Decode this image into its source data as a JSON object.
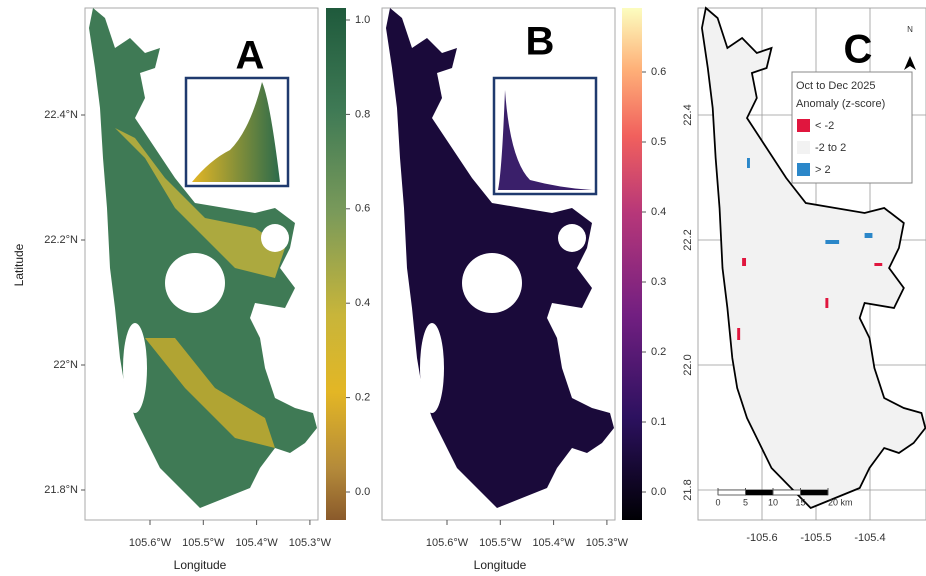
{
  "panels": {
    "a": {
      "label": "A",
      "y_axis_label": "Latitude",
      "x_axis_label": "Longitude",
      "lat_ticks": [
        {
          "value": 22.4,
          "label": "22.4°N"
        },
        {
          "value": 22.2,
          "label": "22.2°N"
        },
        {
          "value": 22,
          "label": "22°N"
        },
        {
          "value": 21.8,
          "label": "21.8°N"
        }
      ],
      "lon_ticks": [
        {
          "value": -105.6,
          "label": "105.6°W"
        },
        {
          "value": -105.5,
          "label": "105.5°W"
        },
        {
          "value": -105.4,
          "label": "105.4°W"
        },
        {
          "value": -105.3,
          "label": "105.3°W"
        }
      ],
      "colorbar_ticks": [
        {
          "value": 0,
          "label": "0.0"
        },
        0.2,
        0.4,
        0.6,
        0.8,
        {
          "value": 1,
          "label": "1.0"
        }
      ]
    },
    "b": {
      "label": "B",
      "x_axis_label": "Longitude",
      "lon_ticks": [
        {
          "value": -105.6,
          "label": "105.6°W"
        },
        {
          "value": -105.5,
          "label": "105.5°W"
        },
        {
          "value": -105.4,
          "label": "105.4°W"
        },
        {
          "value": -105.3,
          "label": "105.3°W"
        }
      ],
      "colorbar_ticks": [
        {
          "value": 0,
          "label": "0.0"
        },
        0.1,
        0.2,
        0.3,
        0.4,
        0.5,
        0.6
      ]
    },
    "c": {
      "label": "C",
      "north": "N",
      "lat_ticks": [
        22.4,
        22.2,
        {
          "value": 22,
          "label": "22.0"
        },
        21.8
      ],
      "lon_ticks": [
        -105.6,
        -105.5,
        -105.4
      ],
      "legend": {
        "title": "Oct to Dec 2025",
        "subtitle": "Anomaly (z-score)",
        "items": [
          {
            "label": "< -2",
            "color": "#e0163e"
          },
          {
            "label": "-2 to 2",
            "color": "#f2f2f2"
          },
          {
            "label": "> 2",
            "color": "#2b87c9"
          }
        ]
      },
      "scale_ticks": [
        0,
        5,
        10,
        15,
        {
          "value": 20,
          "label": "20 km"
        }
      ]
    }
  }
}
